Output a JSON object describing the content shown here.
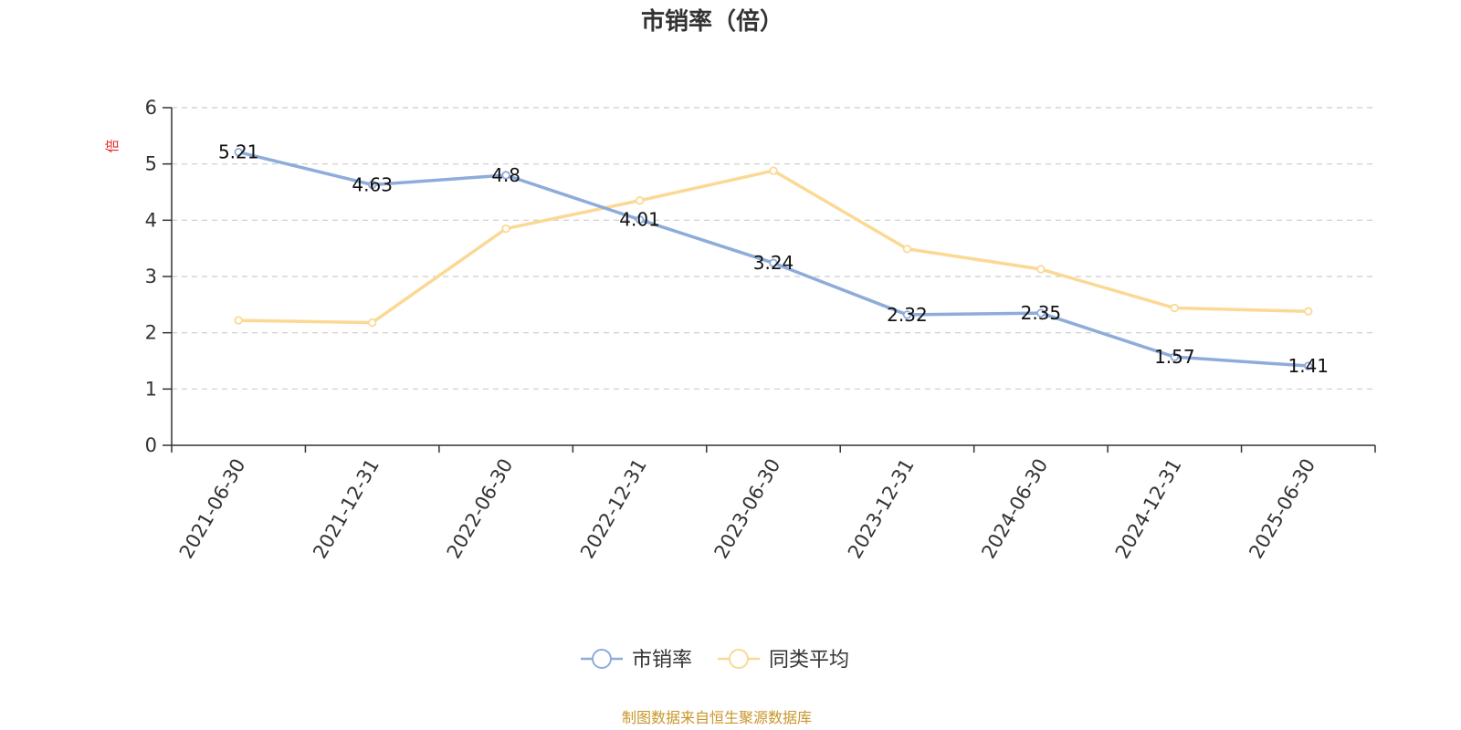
{
  "chart_data": {
    "type": "line",
    "title": "市销率（倍）",
    "ylabel": "倍",
    "xlabel": "",
    "categories": [
      "2021-06-30",
      "2021-12-31",
      "2022-06-30",
      "2022-12-31",
      "2023-06-30",
      "2023-12-31",
      "2024-06-30",
      "2024-12-31",
      "2025-06-30"
    ],
    "ylim": [
      0,
      6
    ],
    "yticks": [
      0,
      1,
      2,
      3,
      4,
      5,
      6
    ],
    "grid": true,
    "legend_position": "bottom-center",
    "series": [
      {
        "name": "市销率",
        "color": "#8eacd9",
        "values": [
          5.21,
          4.63,
          4.8,
          4.01,
          3.24,
          2.32,
          2.35,
          1.57,
          1.41
        ],
        "labels": [
          "5.21",
          "4.63",
          "4.8",
          "4.01",
          "3.24",
          "2.32",
          "2.35",
          "1.57",
          "1.41"
        ],
        "show_labels": true
      },
      {
        "name": "同类平均",
        "color": "#fbd995",
        "values": [
          2.22,
          2.18,
          3.85,
          4.35,
          4.88,
          3.49,
          3.13,
          2.44,
          2.38
        ],
        "show_labels": false
      }
    ]
  },
  "footer": {
    "source": "制图数据来自恒生聚源数据库",
    "source_color": "#c8962a"
  },
  "colors": {
    "axis": "#333333",
    "grid": "#cccccc",
    "unit_label": "#e8251f"
  }
}
